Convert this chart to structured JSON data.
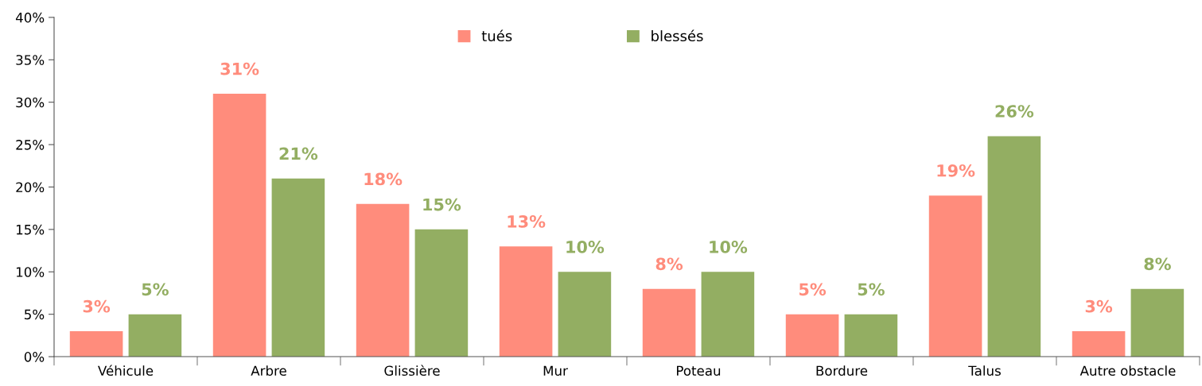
{
  "chart_data": {
    "type": "bar",
    "categories": [
      "Véhicule",
      "Arbre",
      "Glissière",
      "Mur",
      "Poteau",
      "Bordure",
      "Talus",
      "Autre obstacle"
    ],
    "series": [
      {
        "name": "tués",
        "color": "#ff8c7c",
        "values": [
          3,
          31,
          18,
          13,
          8,
          5,
          19,
          3
        ],
        "value_labels": [
          "3%",
          "31%",
          "18%",
          "13%",
          "8%",
          "5%",
          "19%",
          "3%"
        ]
      },
      {
        "name": "blessés",
        "color": "#93ae62",
        "values": [
          5,
          21,
          15,
          10,
          10,
          5,
          26,
          8
        ],
        "value_labels": [
          "5%",
          "21%",
          "15%",
          "10%",
          "10%",
          "5%",
          "26%",
          "8%"
        ]
      }
    ],
    "ylim": [
      0,
      40
    ],
    "yticks": [
      {
        "value": 0,
        "label": "0%"
      },
      {
        "value": 5,
        "label": "5%"
      },
      {
        "value": 10,
        "label": "10%"
      },
      {
        "value": 15,
        "label": "15%"
      },
      {
        "value": 20,
        "label": "20%"
      },
      {
        "value": 25,
        "label": "25%"
      },
      {
        "value": 30,
        "label": "30%"
      },
      {
        "value": 35,
        "label": "35%"
      },
      {
        "value": 40,
        "label": "40%"
      }
    ],
    "grid": false,
    "legend": "top"
  }
}
